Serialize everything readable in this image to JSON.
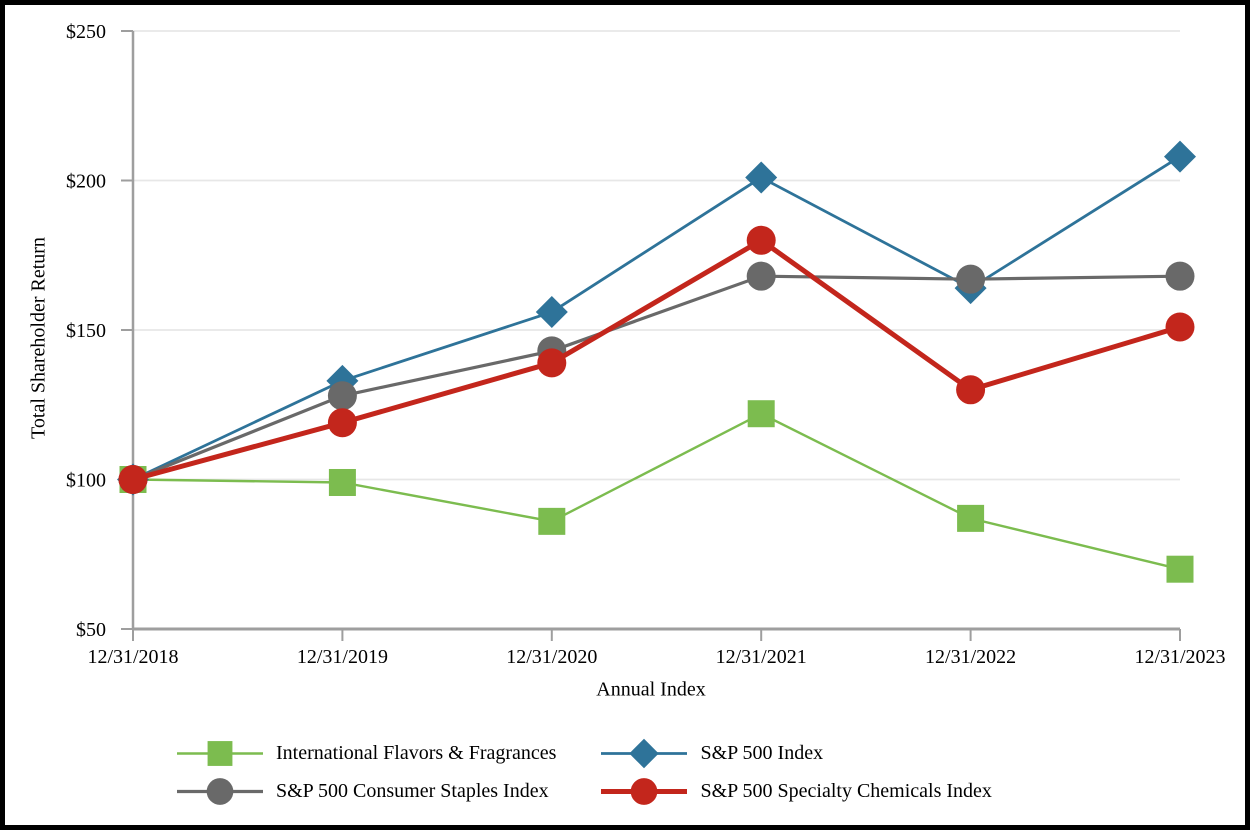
{
  "figure": {
    "background": "#FFFFFF",
    "border_color": "#000000"
  },
  "chart_data": {
    "type": "line",
    "title": "",
    "xlabel": "Annual Index",
    "ylabel": "Total Shareholder Return",
    "categories": [
      "12/31/2018",
      "12/31/2019",
      "12/31/2020",
      "12/31/2021",
      "12/31/2022",
      "12/31/2023"
    ],
    "ylim": [
      50,
      250
    ],
    "yticks": [
      50,
      100,
      150,
      200,
      250
    ],
    "ytick_labels": [
      "$50",
      "$100",
      "$150",
      "$200",
      "$250"
    ],
    "grid": "horizontal gridlines at 100,150,200,250",
    "legend_position": "bottom two-column",
    "axis_color": "#9E9E9E",
    "gridline_color": "#E7E7E7",
    "text_color": "#000000",
    "series": [
      {
        "name": "International Flavors & Fragrances",
        "marker": "square",
        "color": "#7CBC4F",
        "line_width": 2.4,
        "values": [
          100,
          99,
          86,
          122,
          87,
          70
        ]
      },
      {
        "name": "S&P 500 Index",
        "marker": "diamond",
        "color": "#2E7399",
        "line_width": 2.8,
        "values": [
          100,
          133,
          156,
          201,
          164,
          208
        ]
      },
      {
        "name": "S&P 500 Consumer Staples Index",
        "marker": "circle",
        "color": "#696969",
        "line_width": 3.2,
        "values": [
          100,
          128,
          143,
          168,
          167,
          168
        ]
      },
      {
        "name": "S&P 500 Specialty Chemicals Index",
        "marker": "circle",
        "color": "#C3261C",
        "line_width": 5,
        "values": [
          100,
          119,
          139,
          180,
          130,
          151
        ]
      }
    ]
  }
}
